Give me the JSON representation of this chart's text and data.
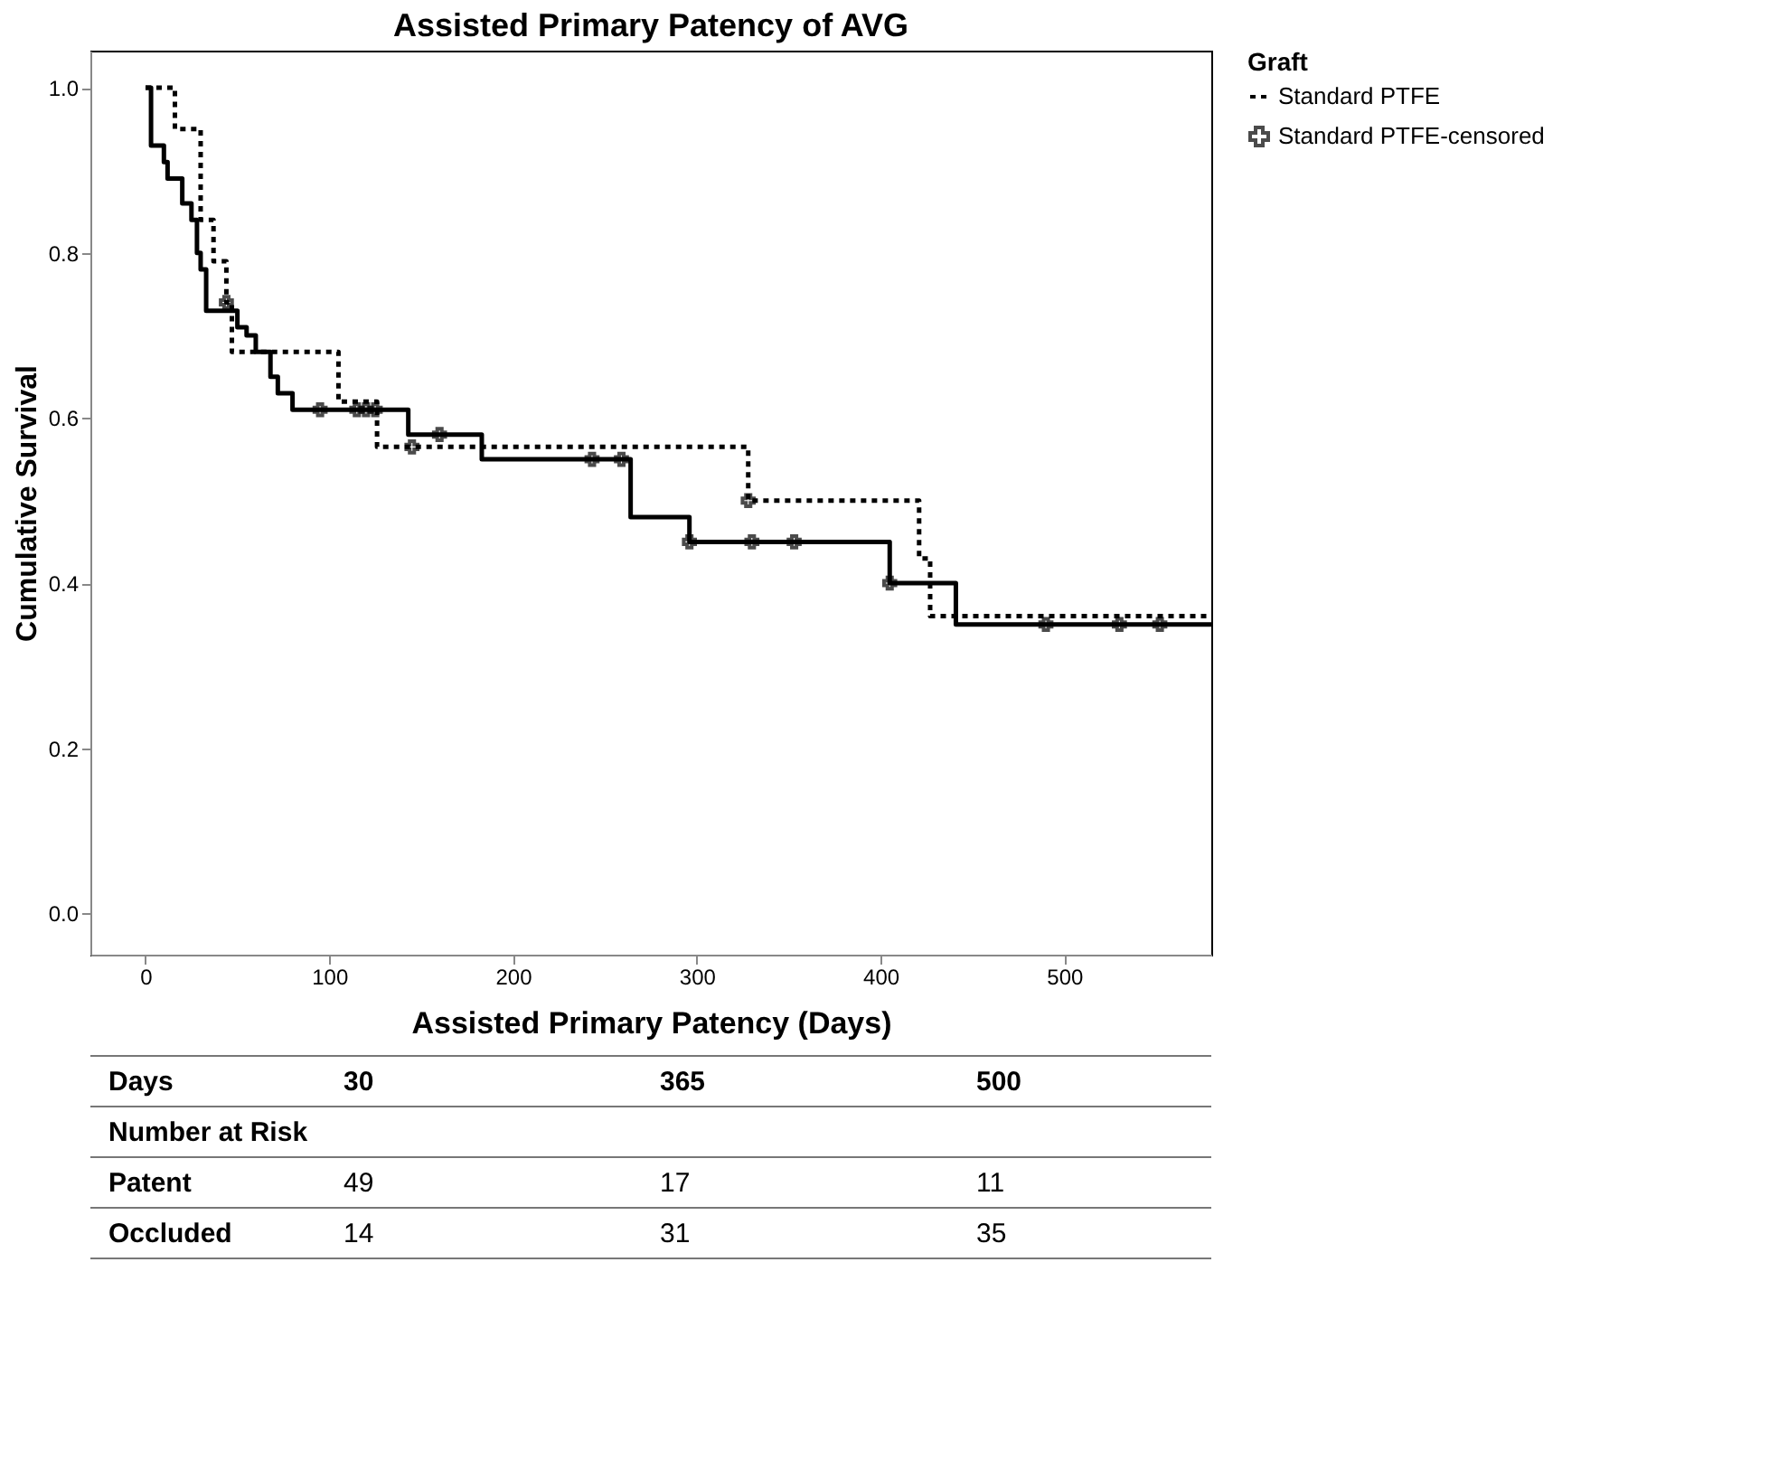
{
  "chart_data": {
    "type": "step",
    "title": "Assisted Primary Patency of AVG",
    "xlabel": "Assisted Primary Patency (Days)",
    "ylabel": "Cumulative Survival",
    "legend_title": "Graft",
    "xlim": [
      -30,
      580
    ],
    "xticks": [
      0,
      100,
      200,
      300,
      400,
      500
    ],
    "ylim": [
      -0.05,
      1.045
    ],
    "yticks": [
      {
        "value": 0,
        "label": "0.0"
      },
      {
        "value": 0.2,
        "label": "0.2"
      },
      {
        "value": 0.4,
        "label": "0.4"
      },
      {
        "value": 0.6,
        "label": "0.6"
      },
      {
        "value": 0.8,
        "label": "0.8"
      },
      {
        "value": 1.0,
        "label": "1.0"
      }
    ],
    "grid": false,
    "legend": "top right",
    "series": [
      {
        "color": "#000000",
        "line_style": "solid",
        "x": [
          0,
          3,
          10,
          12,
          20,
          25,
          28,
          30,
          33,
          50,
          55,
          60,
          68,
          72,
          80,
          143,
          183,
          264,
          296,
          405,
          441,
          580
        ],
        "values": [
          1.0,
          0.93,
          0.91,
          0.89,
          0.86,
          0.84,
          0.8,
          0.78,
          0.73,
          0.71,
          0.7,
          0.68,
          0.65,
          0.63,
          0.61,
          0.58,
          0.55,
          0.48,
          0.45,
          0.4,
          0.35,
          0.35
        ]
      },
      {
        "name": "Standard PTFE",
        "color": "#000000",
        "line_style": "dotted",
        "x": [
          0,
          16,
          30,
          37,
          44,
          47,
          105,
          126,
          328,
          421,
          427,
          580
        ],
        "values": [
          1.0,
          0.95,
          0.84,
          0.79,
          0.74,
          0.68,
          0.62,
          0.565,
          0.5,
          0.43,
          0.36,
          0.36
        ]
      },
      {
        "type": "scatter",
        "color": "#000000",
        "marker": "cross",
        "x": [
          95,
          115,
          120,
          125,
          160,
          243,
          259,
          296,
          330,
          353,
          405,
          490,
          530,
          552
        ],
        "values": [
          0.61,
          0.61,
          0.61,
          0.61,
          0.58,
          0.55,
          0.55,
          0.45,
          0.45,
          0.45,
          0.4,
          0.35,
          0.35,
          0.35
        ]
      },
      {
        "name": "Standard PTFE-censored",
        "type": "scatter",
        "color": "#000000",
        "marker": "cross",
        "x": [
          44,
          145,
          328
        ],
        "values": [
          0.74,
          0.565,
          0.5
        ]
      }
    ],
    "annotations": [
      "Days",
      "30",
      "365",
      "500",
      "Number at Risk",
      "Patent",
      "49",
      "17",
      "11",
      "Occluded",
      "14",
      "31",
      "35"
    ]
  }
}
